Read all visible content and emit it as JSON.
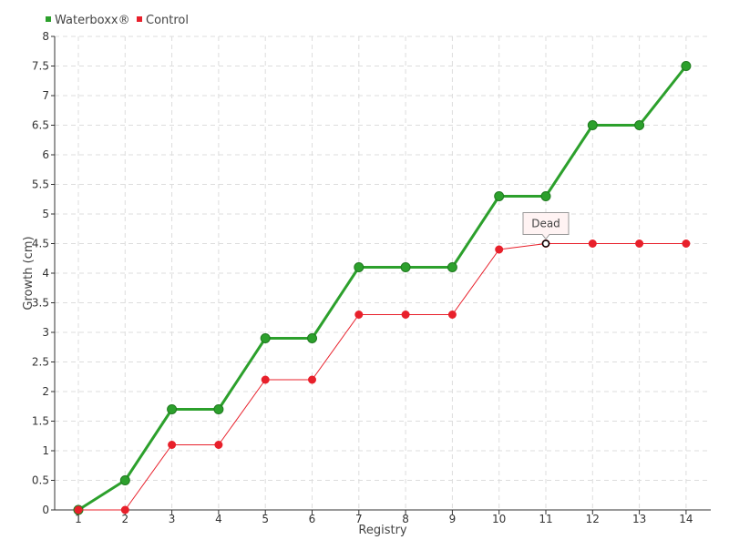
{
  "chart_data": {
    "type": "line",
    "title": "",
    "xlabel": "Registry",
    "ylabel": "Growth (cm)",
    "categories": [
      "1",
      "2",
      "3",
      "4",
      "5",
      "6",
      "7",
      "8",
      "9",
      "10",
      "11",
      "12",
      "13",
      "14"
    ],
    "ylim": [
      0,
      8
    ],
    "yticks": [
      "0",
      "0.5",
      "1",
      "1.5",
      "2",
      "2.5",
      "3",
      "3.5",
      "4",
      "4.5",
      "5",
      "5.5",
      "6",
      "6.5",
      "7",
      "7.5",
      "8"
    ],
    "grid": true,
    "legend_position": "top-left",
    "series": [
      {
        "name": "Waterboxx®",
        "color": "#2ca02c",
        "values": [
          0,
          0.5,
          1.7,
          1.7,
          2.9,
          2.9,
          4.1,
          4.1,
          4.1,
          5.3,
          5.3,
          6.5,
          6.5,
          7.5
        ]
      },
      {
        "name": "Control",
        "color": "#e8202b",
        "values": [
          0,
          0,
          1.1,
          1.1,
          2.2,
          2.2,
          3.3,
          3.3,
          3.3,
          4.4,
          4.5,
          4.5,
          4.5,
          4.5
        ]
      }
    ],
    "annotations": [
      {
        "series": "Control",
        "category": "11",
        "text": "Dead"
      }
    ]
  }
}
